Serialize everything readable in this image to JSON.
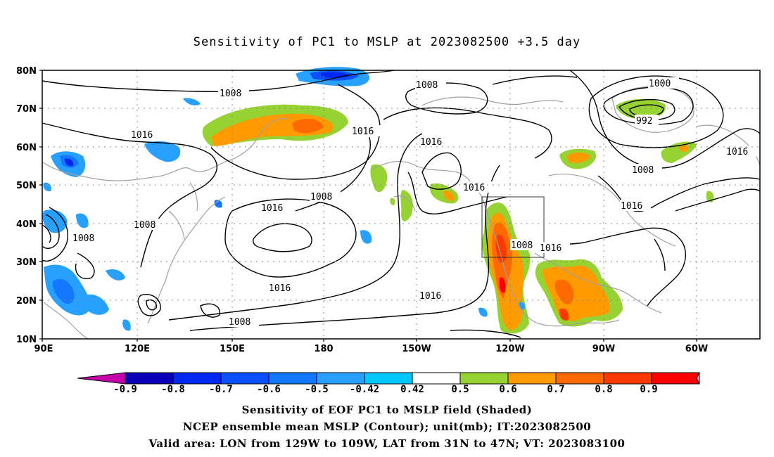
{
  "title": "Sensitivity of PC1 to MSLP at 2023082500 +3.5 day",
  "lat_labels": [
    "80N",
    "70N",
    "60N",
    "50N",
    "40N",
    "30N",
    "20N",
    "10N"
  ],
  "lon_labels": [
    "90E",
    "120E",
    "150E",
    "180",
    "150W",
    "120W",
    "90W",
    "60W"
  ],
  "contours": {
    "unit": "mb",
    "labels": [
      "1008",
      "1016",
      "1016",
      "1008",
      "1016",
      "1008",
      "1008",
      "1016",
      "1016",
      "1016",
      "1008",
      "1016",
      "1008",
      "1016",
      "1000",
      "992",
      "1016",
      "1008",
      "1016",
      "1008"
    ]
  },
  "colorbar": {
    "labels": [
      "-0.9",
      "-0.8",
      "-0.7",
      "-0.6",
      "-0.5",
      "-0.42",
      "0.42",
      "0.5",
      "0.6",
      "0.7",
      "0.8",
      "0.9"
    ],
    "colors": [
      "#c400a8",
      "#0a00b8",
      "#0028f0",
      "#0a50ff",
      "#1478ff",
      "#28a0ff",
      "#00c8ff",
      "#ffffff",
      "#96d232",
      "#ff9a00",
      "#ff6a00",
      "#ff3a00",
      "#ff0000",
      "#ff96c8"
    ]
  },
  "validation_box": {
    "lon_range": [
      "129W",
      "109W"
    ],
    "lat_range": [
      "31N",
      "47N"
    ]
  },
  "captions": [
    "Sensitivity of EOF PC1 to MSLP field (Shaded)",
    "NCEP ensemble mean MSLP (Contour); unit(mb); IT:2023082500",
    "Valid area: LON from 129W to 109W, LAT from 31N to 47N; VT: 2023083100"
  ]
}
